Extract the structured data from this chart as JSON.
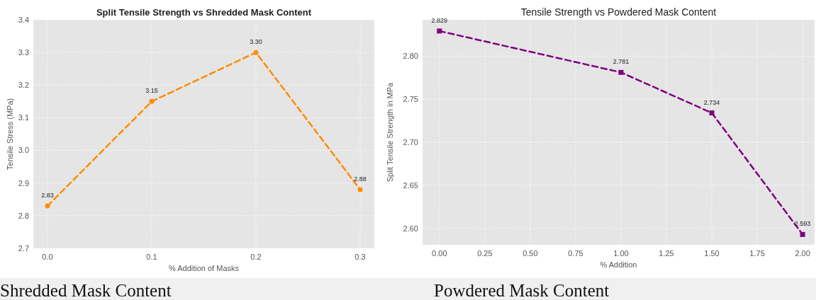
{
  "chart_data": [
    {
      "type": "line",
      "title": "Split Tensile Strength vs Shredded Mask Content",
      "xlabel": "% Addition of Masks",
      "ylabel": "Tensile Stress (MPa)",
      "x": [
        0,
        0.1,
        0.2,
        0.3
      ],
      "series": [
        {
          "color": "#ff8c00",
          "values": [
            2.83,
            3.15,
            3.3,
            2.88
          ],
          "value_labels": [
            "2.83",
            "3.15",
            "3.30",
            "2.88"
          ]
        }
      ],
      "xlim": [
        -0.0136,
        0.3136
      ],
      "xticks": [
        {
          "value": 0,
          "label": "0.0"
        },
        0.1,
        0.2,
        0.3
      ],
      "ylim": [
        2.7,
        3.4
      ],
      "yticks": [
        2.7,
        2.8,
        2.9,
        {
          "value": 3,
          "label": "3.0"
        },
        3.1,
        3.2,
        3.3,
        3.4
      ],
      "grid": true,
      "marker": "circle",
      "line_style": "dashed",
      "annotations": [
        "Shredded Mask Content"
      ]
    },
    {
      "type": "line",
      "title": "Tensile Strength vs Powdered Mask Content",
      "xlabel": "% Addition",
      "ylabel": "Split Tensile Strength in MPa",
      "x": [
        0,
        1,
        1.5,
        2
      ],
      "series": [
        {
          "color": "#800080",
          "values": [
            2.829,
            2.781,
            2.734,
            2.593
          ]
        }
      ],
      "data_labels": true,
      "xlim": [
        -0.093,
        2.066
      ],
      "xticks": [
        {
          "value": 0,
          "label": "0.00"
        },
        0.25,
        {
          "value": 0.5,
          "label": "0.50"
        },
        0.75,
        {
          "value": 1,
          "label": "1.00"
        },
        1.25,
        {
          "value": 1.5,
          "label": "1.50"
        },
        1.75,
        {
          "value": 2,
          "label": "2.00"
        }
      ],
      "ylim": [
        2.581,
        2.842
      ],
      "yticks": [
        {
          "value": 2.6,
          "label": "2.60"
        },
        2.65,
        {
          "value": 2.7,
          "label": "2.70"
        },
        2.75,
        {
          "value": 2.8,
          "label": "2.80"
        }
      ],
      "grid": true,
      "marker": "square",
      "line_style": "dashed",
      "annotations": [
        "Powdered Mask Content"
      ]
    }
  ]
}
